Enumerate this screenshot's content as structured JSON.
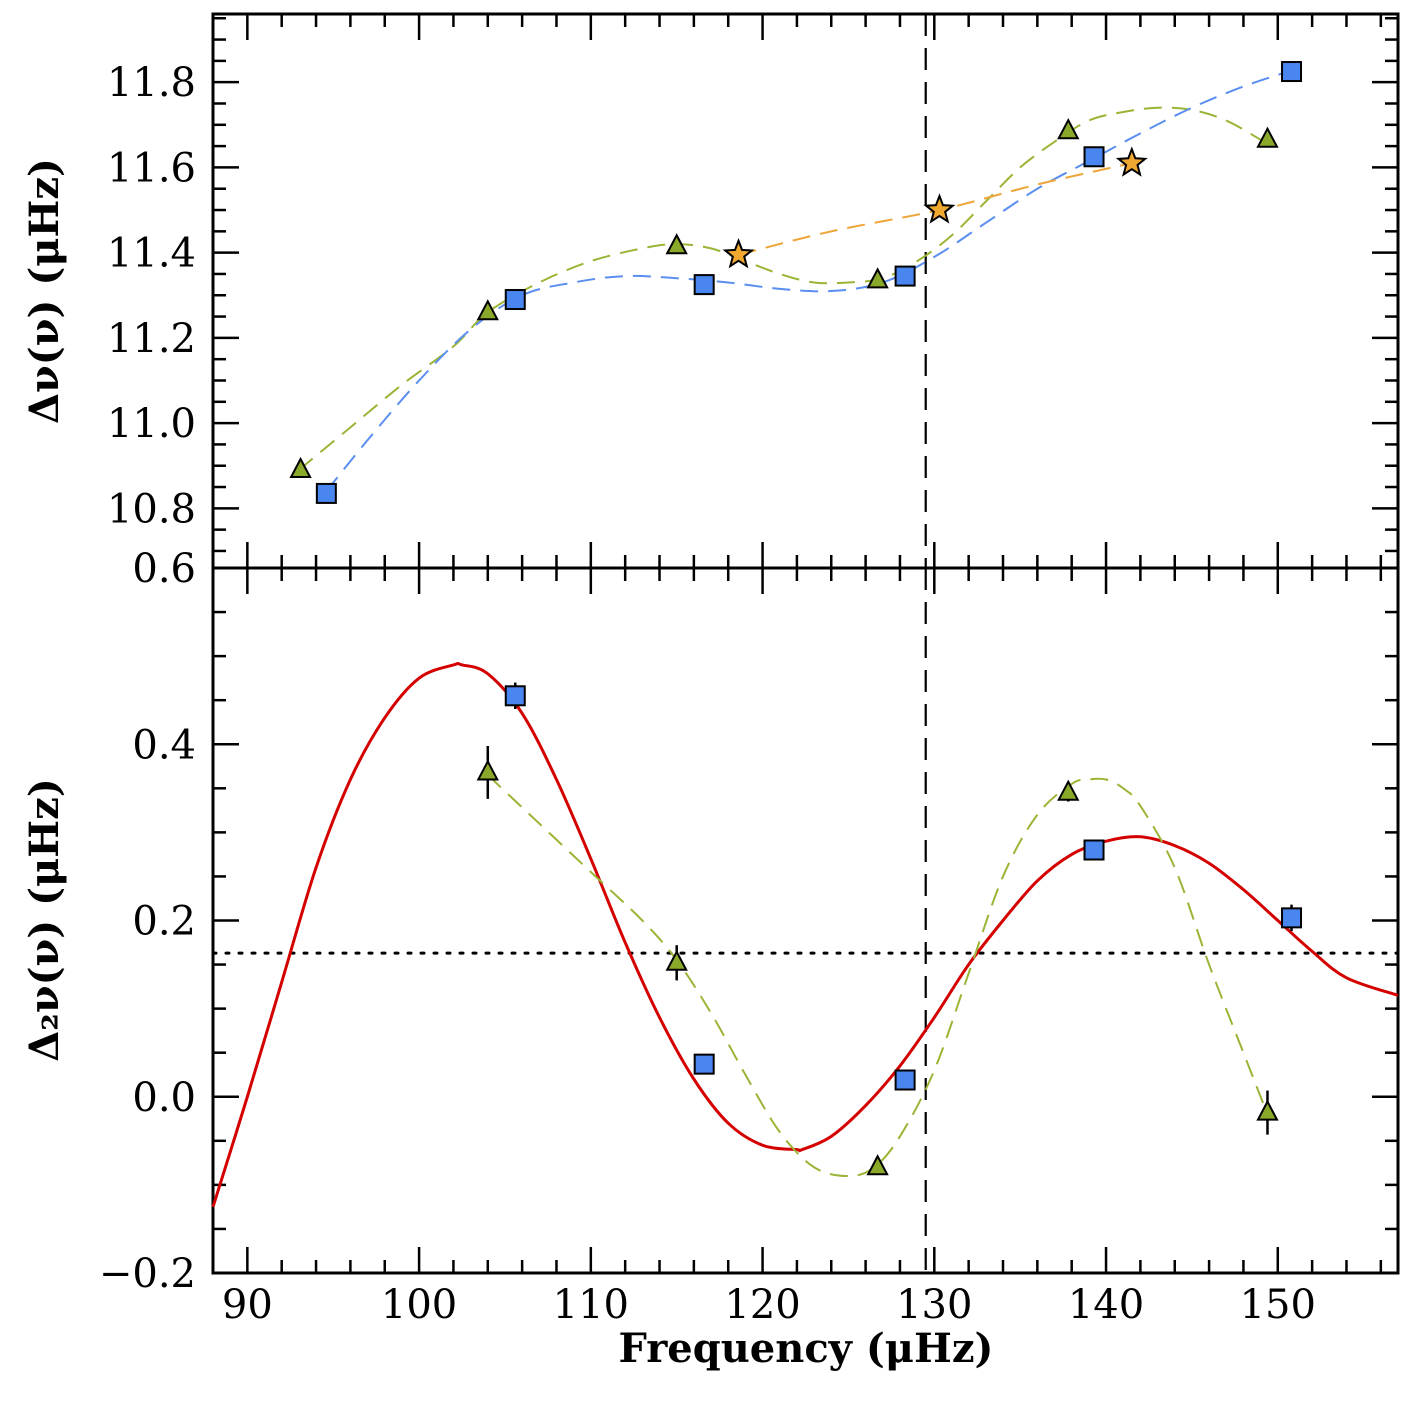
{
  "colors": {
    "blue": "#4a86f0",
    "green": "#8aa82a",
    "orange": "#f0a830",
    "red": "#d40000",
    "green_line": "#9ab536",
    "blue_line": "#5a8ef0",
    "orange_line": "#eea63a"
  },
  "chart_data": [
    {
      "type": "scatter",
      "panel": "top",
      "ylabel": "Δν(ν) (μHz)",
      "xlim": [
        88,
        157
      ],
      "ylim": [
        10.66,
        11.96
      ],
      "yticks": [
        "10.8",
        "11.0",
        "11.2",
        "11.4",
        "11.6",
        "11.8"
      ],
      "ytick_values": [
        10.8,
        11.0,
        11.2,
        11.4,
        11.6,
        11.8
      ],
      "vline_x": 129.5,
      "series": [
        {
          "name": "triangles",
          "marker": "triangle",
          "color": "green",
          "x": [
            93.1,
            104.0,
            115.0,
            126.7,
            137.8,
            149.4
          ],
          "y": [
            10.89,
            11.26,
            11.415,
            11.335,
            11.685,
            11.665
          ]
        },
        {
          "name": "squares",
          "marker": "square",
          "color": "blue",
          "x": [
            94.6,
            105.6,
            116.6,
            128.3,
            139.3,
            150.8
          ],
          "y": [
            10.835,
            11.29,
            11.325,
            11.345,
            11.625,
            11.825
          ]
        },
        {
          "name": "stars",
          "marker": "star",
          "color": "orange",
          "x": [
            118.6,
            130.3,
            141.5
          ],
          "y": [
            11.395,
            11.5,
            11.61
          ]
        }
      ],
      "fits": [
        {
          "name": "triangle-fit",
          "color": "green_line",
          "x": [
            93,
            96,
            99,
            102,
            104,
            107,
            110,
            113,
            115,
            117,
            119,
            121,
            123,
            125,
            127,
            129,
            131,
            133,
            135,
            137,
            139,
            141,
            143,
            145,
            147,
            149
          ],
          "y": [
            10.89,
            10.99,
            11.09,
            11.18,
            11.26,
            11.33,
            11.38,
            11.41,
            11.42,
            11.41,
            11.38,
            11.35,
            11.33,
            11.33,
            11.34,
            11.38,
            11.44,
            11.52,
            11.6,
            11.66,
            11.71,
            11.73,
            11.74,
            11.735,
            11.71,
            11.665
          ]
        },
        {
          "name": "square-fit",
          "color": "blue_line",
          "x": [
            94.6,
            97,
            100,
            103,
            106,
            109,
            112,
            115,
            118,
            121,
            124,
            127,
            130,
            133,
            136,
            139,
            142,
            145,
            148,
            151
          ],
          "y": [
            10.84,
            10.96,
            11.1,
            11.22,
            11.3,
            11.33,
            11.345,
            11.34,
            11.33,
            11.315,
            11.31,
            11.33,
            11.39,
            11.47,
            11.55,
            11.615,
            11.68,
            11.74,
            11.79,
            11.83
          ]
        },
        {
          "name": "star-fit",
          "color": "orange_line",
          "x": [
            118.6,
            124,
            130.3,
            136,
            141.5
          ],
          "y": [
            11.395,
            11.45,
            11.5,
            11.56,
            11.61
          ]
        }
      ]
    },
    {
      "type": "scatter",
      "panel": "bottom",
      "xlabel": "Frequency (μHz)",
      "ylabel": "Δ₂ν(ν) (μHz)",
      "xlim": [
        88,
        157
      ],
      "ylim": [
        -0.2,
        0.6
      ],
      "xticks": [
        "90",
        "100",
        "110",
        "120",
        "130",
        "140",
        "150"
      ],
      "xtick_values": [
        90,
        100,
        110,
        120,
        130,
        140,
        150
      ],
      "yticks": [
        "−0.2",
        "0.0",
        "0.2",
        "0.4",
        "0.6"
      ],
      "ytick_values": [
        -0.2,
        0.0,
        0.2,
        0.4,
        0.6
      ],
      "vline_x": 129.5,
      "hline_y": 0.163,
      "series": [
        {
          "name": "triangles",
          "marker": "triangle",
          "color": "green",
          "x": [
            104.0,
            115.0,
            126.7,
            137.8,
            149.4
          ],
          "y": [
            0.368,
            0.152,
            -0.08,
            0.345,
            -0.018
          ],
          "err": [
            0.03,
            0.02,
            0.008,
            0.01,
            0.025
          ]
        },
        {
          "name": "squares",
          "marker": "square",
          "color": "blue",
          "x": [
            105.6,
            116.6,
            128.3,
            139.3,
            150.8
          ],
          "y": [
            0.455,
            0.037,
            0.019,
            0.28,
            0.203
          ],
          "err": [
            0.015,
            0.008,
            0.008,
            0.008,
            0.015
          ]
        }
      ],
      "fits": [
        {
          "name": "red-model",
          "color": "red",
          "style": "solid",
          "x": [
            88,
            90,
            92,
            94,
            96,
            98,
            100,
            102,
            102.5,
            104,
            106,
            108,
            110,
            112,
            114,
            116,
            118,
            120,
            122,
            122.3,
            124,
            126,
            128,
            130,
            132,
            134,
            136,
            138,
            140,
            142,
            144,
            146,
            148,
            150,
            152,
            154,
            157
          ],
          "y": [
            -0.125,
            0.0,
            0.13,
            0.26,
            0.36,
            0.43,
            0.475,
            0.49,
            0.49,
            0.48,
            0.435,
            0.36,
            0.27,
            0.175,
            0.09,
            0.02,
            -0.03,
            -0.055,
            -0.06,
            -0.06,
            -0.045,
            -0.01,
            0.035,
            0.09,
            0.15,
            0.2,
            0.245,
            0.275,
            0.29,
            0.295,
            0.285,
            0.265,
            0.235,
            0.2,
            0.165,
            0.135,
            0.115
          ]
        },
        {
          "name": "green-model",
          "color": "green_line",
          "style": "dashed",
          "x": [
            104,
            107,
            110,
            113,
            115,
            117,
            119,
            121,
            123,
            125,
            126.5,
            128,
            130,
            132,
            134,
            136,
            138,
            139,
            140,
            141,
            142,
            144,
            146,
            148,
            149.4
          ],
          "y": [
            0.365,
            0.31,
            0.255,
            0.2,
            0.155,
            0.095,
            0.025,
            -0.04,
            -0.08,
            -0.09,
            -0.08,
            -0.045,
            0.03,
            0.14,
            0.25,
            0.32,
            0.355,
            0.36,
            0.36,
            0.35,
            0.33,
            0.26,
            0.15,
            0.05,
            -0.02
          ]
        }
      ]
    }
  ]
}
